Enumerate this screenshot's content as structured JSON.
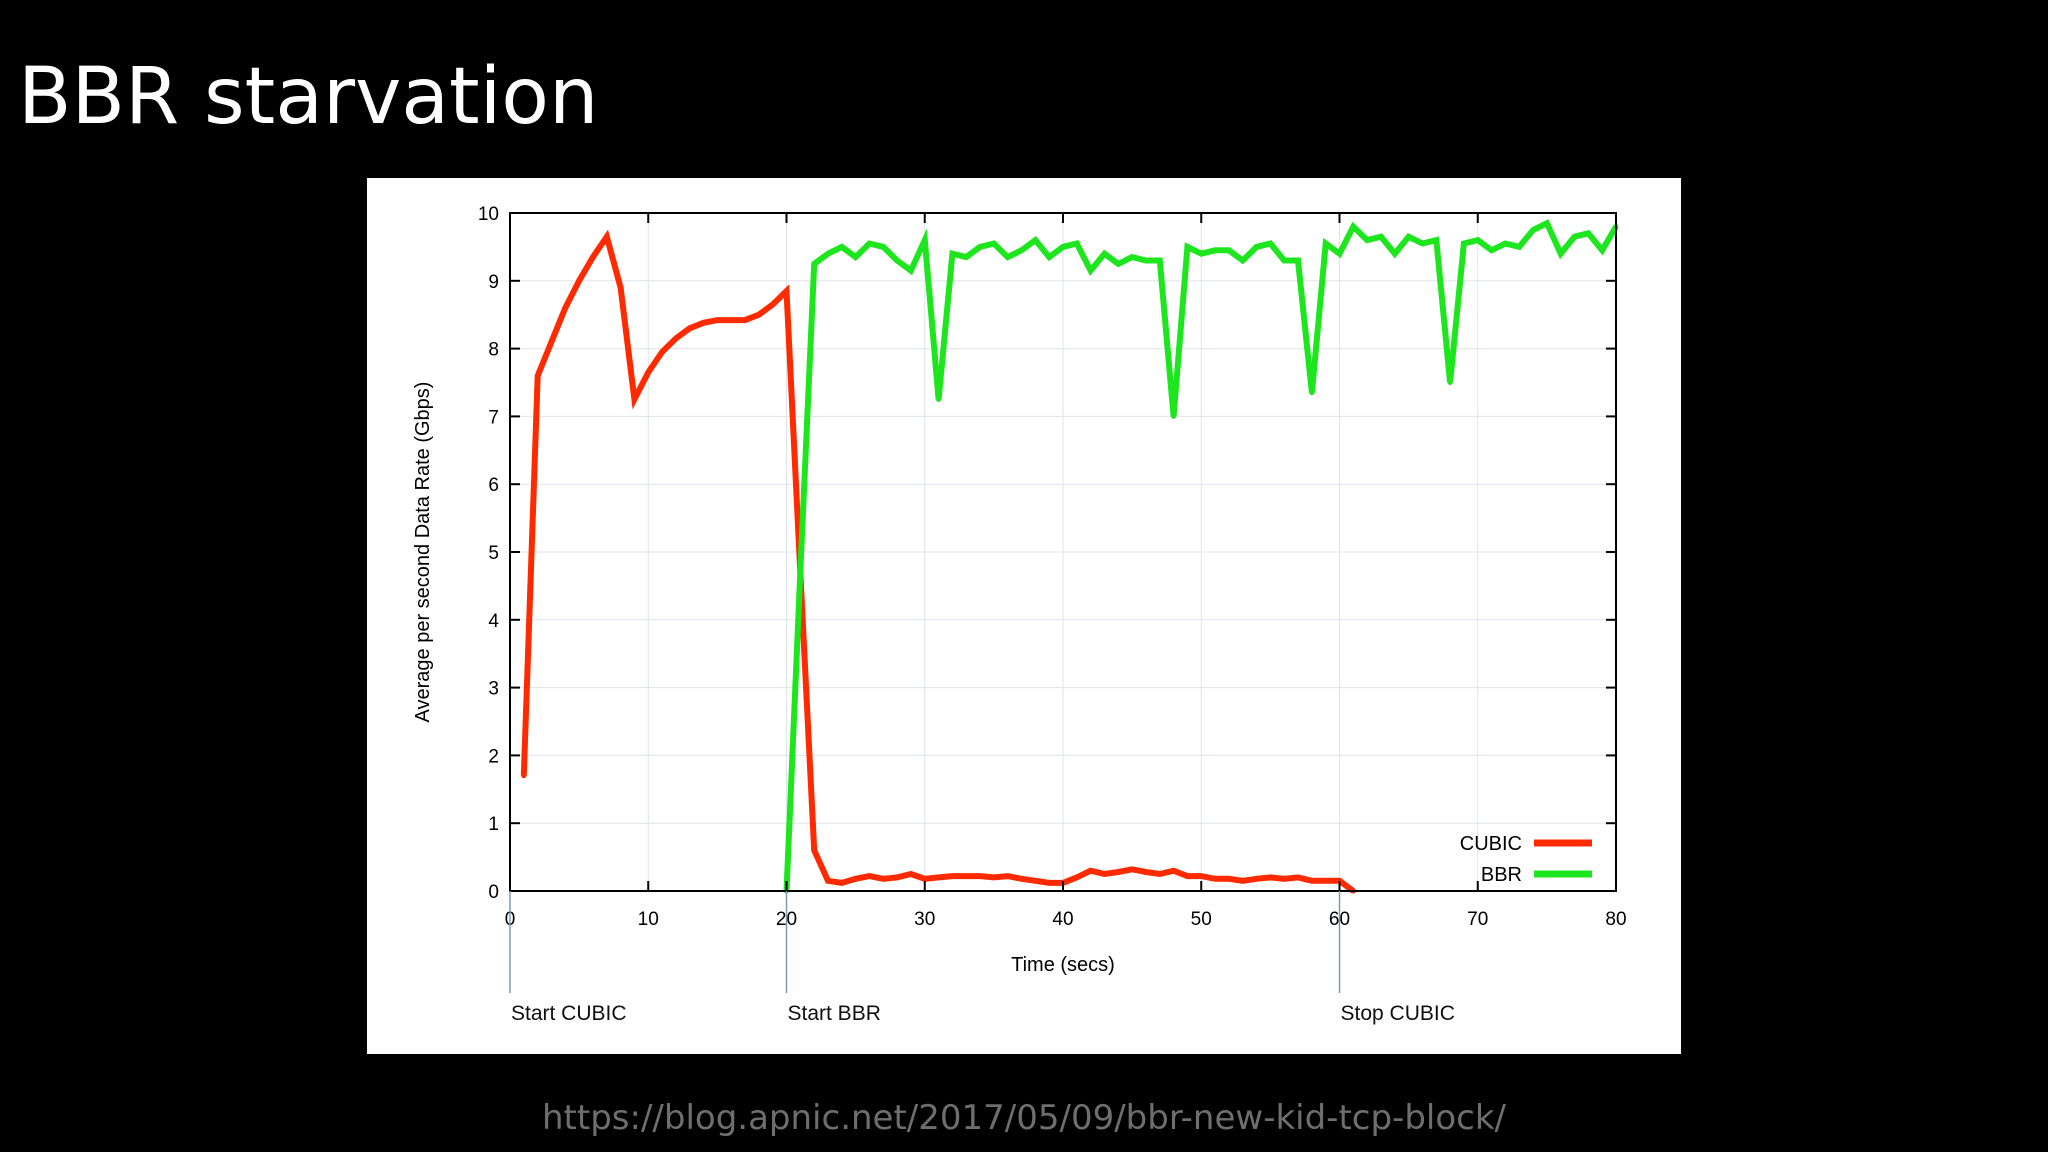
{
  "slide": {
    "title": "BBR starvation",
    "source_url": "https://blog.apnic.net/2017/05/09/bbr-new-kid-tcp-block/"
  },
  "chart_data": {
    "type": "line",
    "xlabel": "Time (secs)",
    "ylabel": "Average per second Data Rate (Gbps)",
    "xlim": [
      0,
      80
    ],
    "ylim": [
      0,
      10
    ],
    "xticks": [
      0,
      10,
      20,
      30,
      40,
      50,
      60,
      70,
      80
    ],
    "yticks": [
      0,
      1,
      2,
      3,
      4,
      5,
      6,
      7,
      8,
      9,
      10
    ],
    "grid": true,
    "legend_position": "bottom-right",
    "series": [
      {
        "name": "CUBIC",
        "color": "#ff2a00",
        "points": [
          [
            1,
            1.7
          ],
          [
            2,
            7.6
          ],
          [
            3,
            8.1
          ],
          [
            4,
            8.6
          ],
          [
            5,
            9.0
          ],
          [
            6,
            9.35
          ],
          [
            7,
            9.65
          ],
          [
            8,
            8.9
          ],
          [
            9,
            7.25
          ],
          [
            10,
            7.65
          ],
          [
            11,
            7.95
          ],
          [
            12,
            8.15
          ],
          [
            13,
            8.3
          ],
          [
            14,
            8.38
          ],
          [
            15,
            8.42
          ],
          [
            16,
            8.42
          ],
          [
            17,
            8.42
          ],
          [
            18,
            8.5
          ],
          [
            19,
            8.65
          ],
          [
            20,
            8.85
          ],
          [
            21,
            4.7
          ],
          [
            22,
            0.6
          ],
          [
            23,
            0.15
          ],
          [
            24,
            0.12
          ],
          [
            25,
            0.18
          ],
          [
            26,
            0.22
          ],
          [
            27,
            0.18
          ],
          [
            28,
            0.2
          ],
          [
            29,
            0.25
          ],
          [
            30,
            0.18
          ],
          [
            31,
            0.2
          ],
          [
            32,
            0.22
          ],
          [
            33,
            0.22
          ],
          [
            34,
            0.22
          ],
          [
            35,
            0.2
          ],
          [
            36,
            0.22
          ],
          [
            37,
            0.18
          ],
          [
            38,
            0.15
          ],
          [
            39,
            0.12
          ],
          [
            40,
            0.12
          ],
          [
            41,
            0.2
          ],
          [
            42,
            0.3
          ],
          [
            43,
            0.25
          ],
          [
            44,
            0.28
          ],
          [
            45,
            0.32
          ],
          [
            46,
            0.28
          ],
          [
            47,
            0.25
          ],
          [
            48,
            0.3
          ],
          [
            49,
            0.22
          ],
          [
            50,
            0.22
          ],
          [
            51,
            0.18
          ],
          [
            52,
            0.18
          ],
          [
            53,
            0.15
          ],
          [
            54,
            0.18
          ],
          [
            55,
            0.2
          ],
          [
            56,
            0.18
          ],
          [
            57,
            0.2
          ],
          [
            58,
            0.15
          ],
          [
            59,
            0.15
          ],
          [
            60,
            0.15
          ],
          [
            61,
            0.0
          ]
        ]
      },
      {
        "name": "BBR",
        "color": "#1ee61e",
        "points": [
          [
            20,
            0.0
          ],
          [
            21,
            4.7
          ],
          [
            22,
            9.25
          ],
          [
            23,
            9.4
          ],
          [
            24,
            9.5
          ],
          [
            25,
            9.35
          ],
          [
            26,
            9.55
          ],
          [
            27,
            9.5
          ],
          [
            28,
            9.3
          ],
          [
            29,
            9.15
          ],
          [
            30,
            9.6
          ],
          [
            31,
            7.25
          ],
          [
            32,
            9.4
          ],
          [
            33,
            9.35
          ],
          [
            34,
            9.5
          ],
          [
            35,
            9.55
          ],
          [
            36,
            9.35
          ],
          [
            37,
            9.45
          ],
          [
            38,
            9.6
          ],
          [
            39,
            9.35
          ],
          [
            40,
            9.5
          ],
          [
            41,
            9.55
          ],
          [
            42,
            9.15
          ],
          [
            43,
            9.4
          ],
          [
            44,
            9.25
          ],
          [
            45,
            9.35
          ],
          [
            46,
            9.3
          ],
          [
            47,
            9.3
          ],
          [
            48,
            7.0
          ],
          [
            49,
            9.5
          ],
          [
            50,
            9.4
          ],
          [
            51,
            9.45
          ],
          [
            52,
            9.45
          ],
          [
            53,
            9.3
          ],
          [
            54,
            9.5
          ],
          [
            55,
            9.55
          ],
          [
            56,
            9.3
          ],
          [
            57,
            9.3
          ],
          [
            58,
            7.35
          ],
          [
            59,
            9.55
          ],
          [
            60,
            9.4
          ],
          [
            61,
            9.8
          ],
          [
            62,
            9.6
          ],
          [
            63,
            9.65
          ],
          [
            64,
            9.4
          ],
          [
            65,
            9.65
          ],
          [
            66,
            9.55
          ],
          [
            67,
            9.6
          ],
          [
            68,
            7.5
          ],
          [
            69,
            9.55
          ],
          [
            70,
            9.6
          ],
          [
            71,
            9.45
          ],
          [
            72,
            9.55
          ],
          [
            73,
            9.5
          ],
          [
            74,
            9.75
          ],
          [
            75,
            9.85
          ],
          [
            76,
            9.4
          ],
          [
            77,
            9.65
          ],
          [
            78,
            9.7
          ],
          [
            79,
            9.45
          ],
          [
            80,
            9.8
          ]
        ]
      }
    ],
    "annotations": [
      {
        "x": 0,
        "text": "Start CUBIC"
      },
      {
        "x": 20,
        "text": "Start BBR"
      },
      {
        "x": 60,
        "text": "Stop CUBIC"
      }
    ]
  }
}
